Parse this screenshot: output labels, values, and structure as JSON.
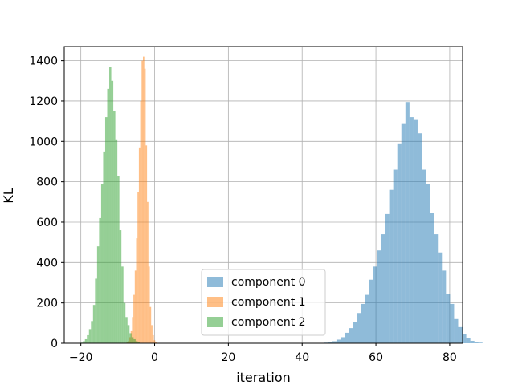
{
  "chart_data": {
    "type": "bar",
    "title": "",
    "xlabel": "iteration",
    "ylabel": "KL",
    "xlim": [
      -24.5,
      83.5
    ],
    "ylim": [
      0,
      1470
    ],
    "xticks": [
      -20,
      0,
      20,
      40,
      60,
      80
    ],
    "yticks": [
      0,
      200,
      400,
      600,
      800,
      1000,
      1200,
      1400
    ],
    "grid": true,
    "legend": "bottom-center",
    "colors": {
      "component 0": "#1f77b4",
      "component 1": "#ff7f0e",
      "component 2": "#2ca02c"
    },
    "alpha": 0.5,
    "series": [
      {
        "name": "component 0",
        "bin_width": 1.1,
        "x_start": 46.0,
        "values": [
          3,
          6,
          10,
          18,
          30,
          52,
          75,
          105,
          150,
          195,
          240,
          315,
          380,
          460,
          540,
          640,
          760,
          860,
          990,
          1090,
          1195,
          1120,
          1110,
          1040,
          860,
          790,
          645,
          540,
          450,
          360,
          245,
          195,
          120,
          80,
          45,
          25,
          12,
          6,
          3
        ]
      },
      {
        "name": "component 1",
        "bin_width": 0.37,
        "x_start": -7.6,
        "values": [
          5,
          10,
          30,
          60,
          130,
          240,
          360,
          520,
          750,
          970,
          1200,
          1400,
          1420,
          1360,
          980,
          700,
          380,
          180,
          90,
          40,
          15,
          5
        ]
      },
      {
        "name": "component 2",
        "bin_width": 0.55,
        "x_start": -20.0,
        "values": [
          3,
          10,
          20,
          40,
          70,
          110,
          190,
          320,
          480,
          620,
          790,
          950,
          1120,
          1260,
          1370,
          1300,
          1150,
          1010,
          830,
          560,
          380,
          200,
          130,
          90,
          50,
          30,
          20,
          10,
          5
        ]
      }
    ]
  }
}
